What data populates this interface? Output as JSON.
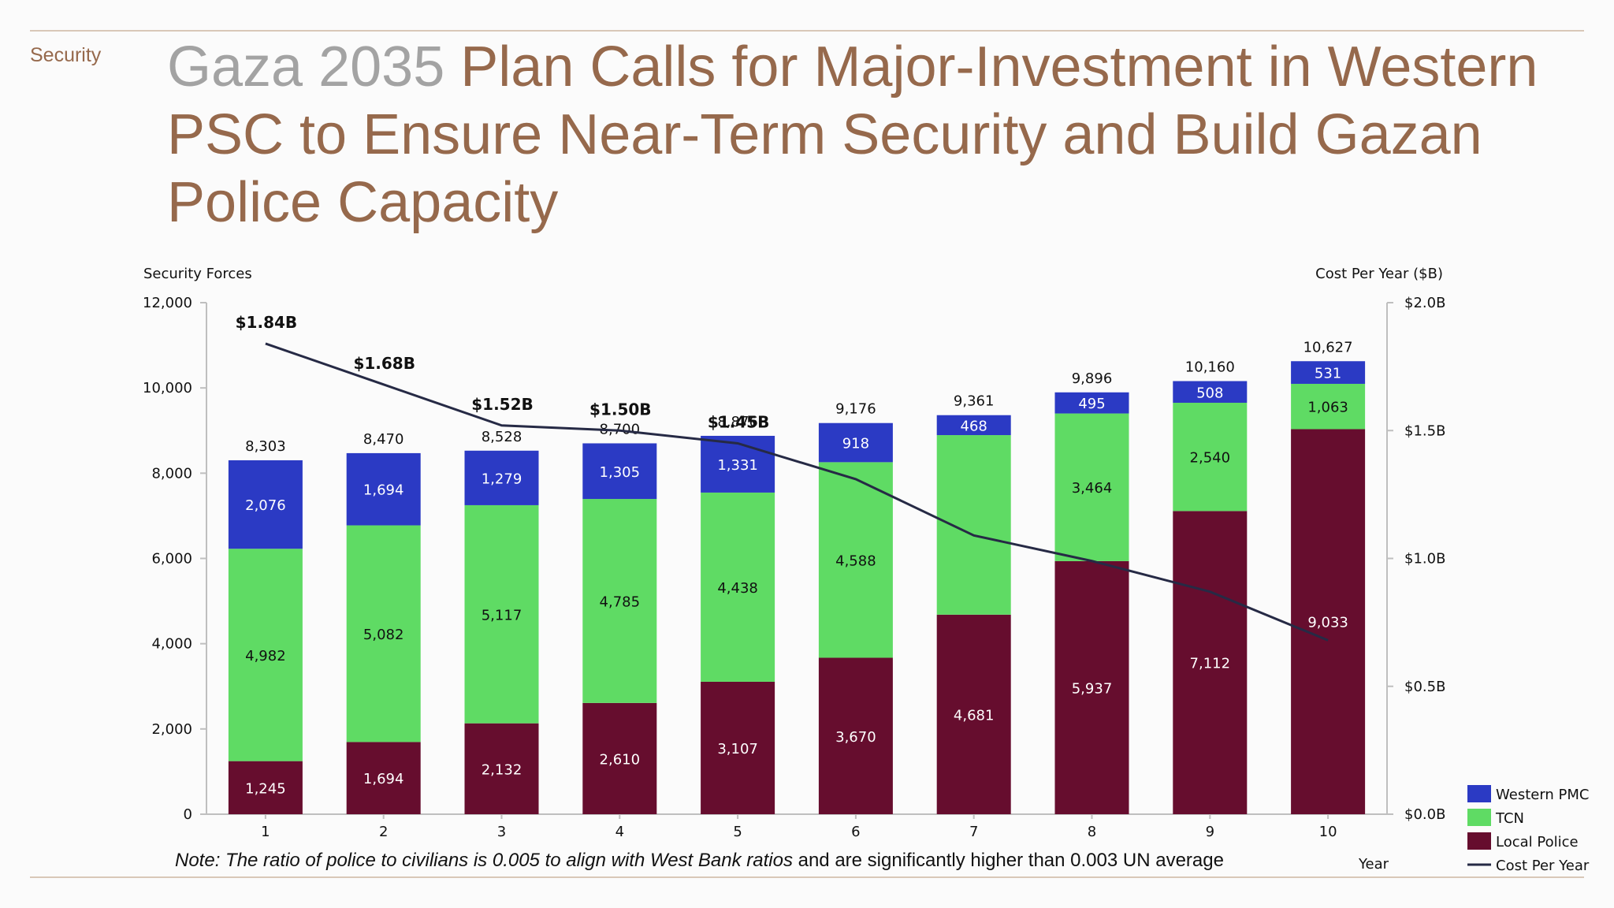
{
  "header": {
    "section": "Security",
    "title_lead": "Gaza 2035",
    "title_rest": "Plan Calls for Major-Investment in Western PSC to Ensure Near-Term Security and Build Gazan Police Capacity"
  },
  "note": {
    "italic": "Note: The ratio of police to civilians is 0.005 to align with West Bank ratios",
    "plain": "and are significantly higher than 0.003 UN average"
  },
  "colors": {
    "western_pmc": "#2b3ac4",
    "tcn": "#5fdb64",
    "local_police": "#660d2e",
    "cost_line": "#262a45",
    "accent": "#96694c"
  },
  "chart_data": {
    "type": "bar",
    "stacked": true,
    "categories": [
      "1",
      "2",
      "3",
      "4",
      "5",
      "6",
      "7",
      "8",
      "9",
      "10"
    ],
    "xlabel": "Year",
    "ylabel": "Security Forces",
    "y2label": "Cost Per Year ($B)",
    "ylim": [
      0,
      12000
    ],
    "y_ticks": [
      "0",
      "2,000",
      "4,000",
      "6,000",
      "8,000",
      "10,000",
      "12,000"
    ],
    "y2lim": [
      0,
      2.0
    ],
    "y2_ticks": [
      "$0.0B",
      "$0.5B",
      "$1.0B",
      "$1.5B",
      "$2.0B"
    ],
    "series": [
      {
        "name": "Local Police",
        "values": [
          1245,
          1694,
          2132,
          2610,
          3107,
          3670,
          4681,
          5937,
          7112,
          9033
        ],
        "labels": [
          "1,245",
          "1,694",
          "2,132",
          "2,610",
          "3,107",
          "3,670",
          "4,681",
          "5,937",
          "7,112",
          "9,033"
        ]
      },
      {
        "name": "TCN",
        "values": [
          4982,
          5082,
          5117,
          4785,
          4438,
          4588,
          4212,
          3464,
          2540,
          1063
        ],
        "labels": [
          "4,982",
          "5,082",
          "5,117",
          "4,785",
          "4,438",
          "4,588",
          "",
          "3,464",
          "2,540",
          "1,063"
        ]
      },
      {
        "name": "Western PMC",
        "values": [
          2076,
          1694,
          1279,
          1305,
          1331,
          918,
          468,
          495,
          508,
          531
        ],
        "labels": [
          "2,076",
          "1,694",
          "1,279",
          "1,305",
          "1,331",
          "918",
          "468",
          "495",
          "508",
          "531"
        ]
      }
    ],
    "totals": [
      "8,303",
      "8,470",
      "8,528",
      "8,700",
      "8,876",
      "9,176",
      "9,361",
      "9,896",
      "10,160",
      "10,627"
    ],
    "cost_line": {
      "name": "Cost Per Year",
      "values": [
        1.84,
        1.68,
        1.52,
        1.5,
        1.45,
        1.31,
        1.09,
        0.99,
        0.87,
        0.68
      ],
      "labels": [
        "$1.84B",
        "$1.68B",
        "$1.52B",
        "$1.50B",
        "$1.45B",
        "",
        "",
        "",
        "",
        ""
      ]
    },
    "legend": [
      "Western PMC",
      "TCN",
      "Local Police",
      "Cost Per Year"
    ],
    "legend_position": "bottom-right",
    "grid": false
  }
}
